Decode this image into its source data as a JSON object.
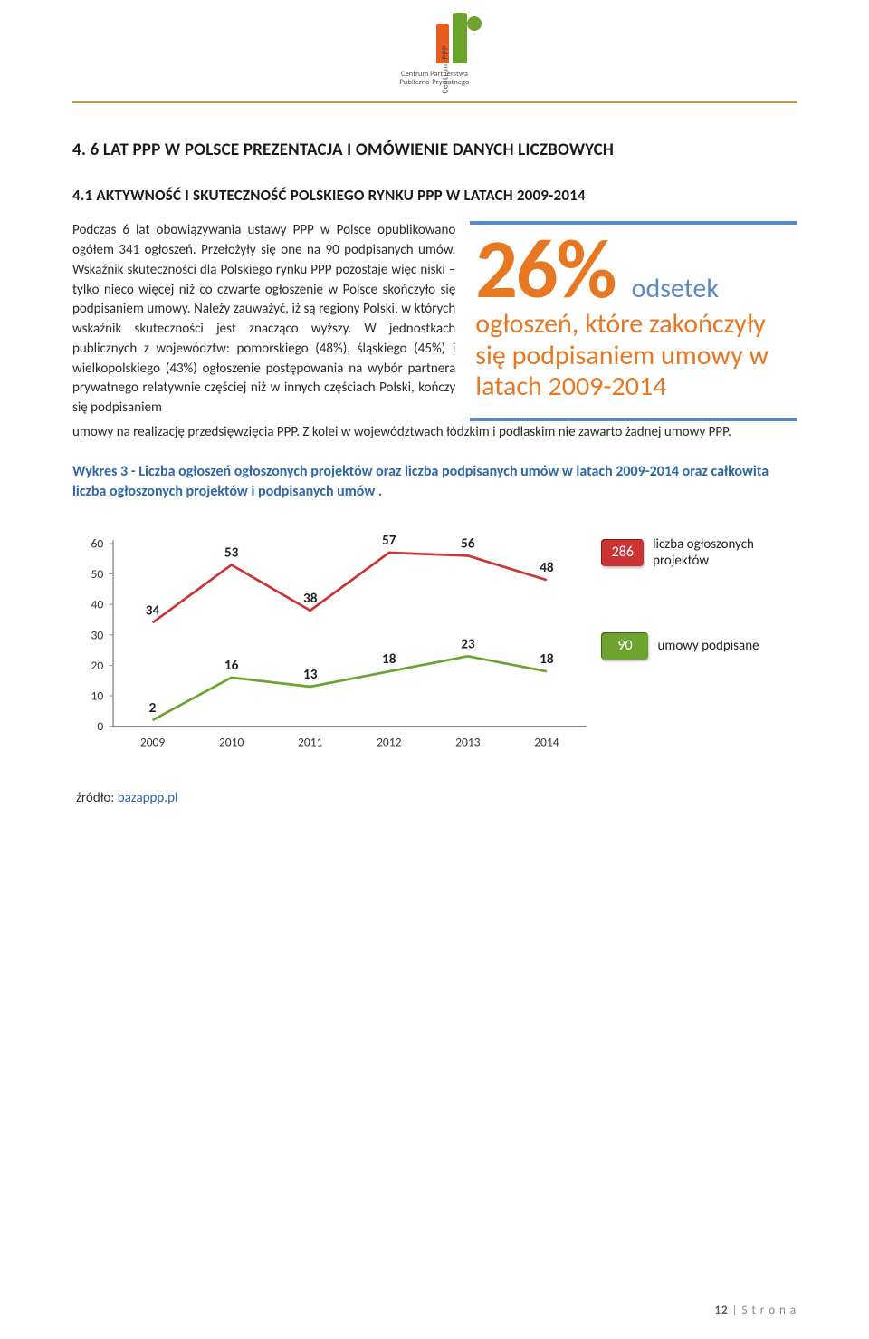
{
  "logo": {
    "vertical_text": "Centrum PPP",
    "caption_line1": "Centrum Partnerstwa",
    "caption_line2": "Publiczno-Prywatnego",
    "bar1_color": "#e85c1f",
    "bar2_color": "#6ea22e"
  },
  "heading_main": "4. 6 LAT PPP W POLSCE PREZENTACJA I OMÓWIENIE DANYCH LICZBOWYCH",
  "heading_sub": "4.1 AKTYWNOŚĆ I SKUTECZNOŚĆ POLSKIEGO RYNKU PPP W LATACH 2009-2014",
  "paragraph_left": "Podczas 6 lat obowiązywania ustawy PPP w Polsce opublikowano ogółem 341 ogłoszeń. Przełożyły się one na 90 podpisanych umów. Wskaźnik skuteczności dla Polskiego rynku PPP pozostaje więc niski – tylko nieco więcej niż co czwarte ogłoszenie w Polsce skończyło się podpisaniem umowy. Należy zauważyć, iż są regiony Polski, w których wskaźnik skuteczności jest znacząco wyższy. W jednostkach publicznych z województw: pomorskiego (48%), śląskiego (45%) i wielkopolskiego (43%) ogłoszenie postępowania na wybór partnera prywatnego relatywnie częściej niż w innych częściach Polski, kończy się podpisaniem",
  "paragraph_after": "umowy na realizację przedsięwzięcia PPP. Z kolei w województwach łódzkim i podlaskim nie zawarto żadnej umowy PPP.",
  "callout": {
    "pct": "26%",
    "odsetek": "odsetek",
    "body": "ogłoszeń, które zakończyły się podpisaniem umowy w latach 2009-2014",
    "border_color": "#5a8cc2",
    "pct_color": "#e87722"
  },
  "chart_title": "Wykres 3 - Liczba ogłoszeń ogłoszonych projektów oraz liczba podpisanych umów w latach 2009-2014 oraz całkowita liczba ogłoszonych projektów i podpisanych umów .",
  "chart": {
    "type": "line",
    "categories": [
      "2009",
      "2010",
      "2011",
      "2012",
      "2013",
      "2014"
    ],
    "series": [
      {
        "name": "projekty",
        "values": [
          34,
          53,
          38,
          57,
          56,
          48
        ],
        "color": "#cc3333",
        "labels": [
          "34",
          "53",
          "38",
          "57",
          "56",
          "48"
        ]
      },
      {
        "name": "umowy",
        "values": [
          2,
          16,
          13,
          18,
          23,
          18
        ],
        "color": "#6ea22e",
        "labels": [
          "2",
          "16",
          "13",
          "18",
          "23",
          "18"
        ]
      }
    ],
    "ylim": [
      0,
      60
    ],
    "ytick_step": 10,
    "label_fontsize": 17,
    "tick_fontsize": 15,
    "axis_color": "#888888",
    "line_width": 3,
    "background": "#ffffff"
  },
  "legend": {
    "items": [
      {
        "badge": "286",
        "color_class": "badge-red",
        "text": "liczba ogłoszonych projektów"
      },
      {
        "badge": "90",
        "color_class": "badge-green",
        "text": "umowy podpisane"
      }
    ]
  },
  "source_label": "źródło: ",
  "source_link": "bazappp.pl",
  "footer": {
    "page": "12",
    "word": "S t r o n a"
  }
}
